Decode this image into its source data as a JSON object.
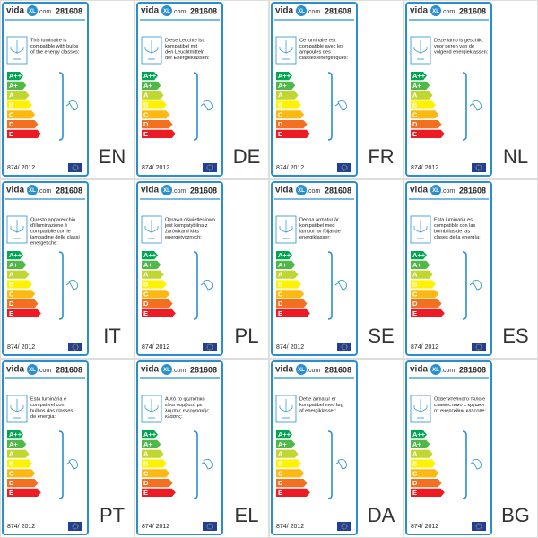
{
  "logo": {
    "prefix": "vida",
    "mark": "XL",
    "suffix": ".com"
  },
  "product_number": "281608",
  "classes": [
    "A++",
    "A+",
    "A",
    "B",
    "C",
    "D",
    "E"
  ],
  "regulation": "874/ 2012",
  "labels": [
    {
      "lang": "EN",
      "lines": [
        "This luminaire is",
        "compatible with bulbs",
        "of the energy classes:"
      ]
    },
    {
      "lang": "DE",
      "lines": [
        "Diese Leuchte ist",
        "kompatibel mit",
        "den Leuchtmitteln",
        "der Energieklassen:"
      ]
    },
    {
      "lang": "FR",
      "lines": [
        "Ce luminaire est",
        "compatible avec les",
        "ampoules des",
        "classes énergétiques:"
      ]
    },
    {
      "lang": "NL",
      "lines": [
        "Deze lamp is geschikt",
        "voor peren van de",
        "volgend energieklassen:"
      ]
    },
    {
      "lang": "IT",
      "lines": [
        "Questo apparecchio",
        "d'illuminazione è",
        "compatibile con le",
        "lampadine delle classi",
        "energetiche:"
      ]
    },
    {
      "lang": "PL",
      "lines": [
        "Oprawa oświetleniowa",
        "jest kompatybilna z",
        "żarówkami klas",
        "energetycznych:"
      ]
    },
    {
      "lang": "SE",
      "lines": [
        "Denna armatur är",
        "kompatibel med",
        "lampor av följande",
        "energiklasser:"
      ]
    },
    {
      "lang": "ES",
      "lines": [
        "Esta luminaria es",
        "compatible con las",
        "bombillas de las",
        "clases de la energía:"
      ]
    },
    {
      "lang": "PT",
      "lines": [
        "Esta luminária é",
        "compatível com",
        "bulbos das classes",
        "de energia:"
      ]
    },
    {
      "lang": "EL",
      "lines": [
        "Αυτό το φωτιστικό",
        "είναι συμβατό με",
        "λάμπες ενεργειακής",
        "κλάσης:"
      ]
    },
    {
      "lang": "DA",
      "lines": [
        "Dette armatur er",
        "kompatibel med løg",
        "af energiklasser:"
      ]
    },
    {
      "lang": "BG",
      "lines": [
        "Осветителното тяло е",
        "съвместимо с крушки",
        "от енергийни класове:"
      ]
    }
  ]
}
